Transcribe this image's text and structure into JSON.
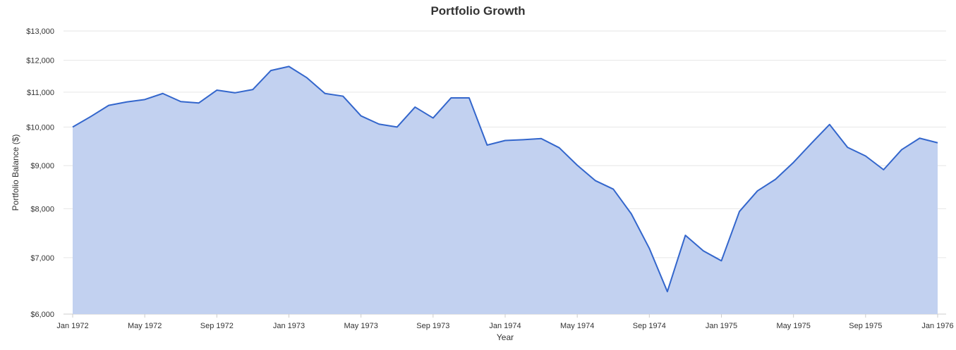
{
  "chart_data": {
    "type": "area",
    "title": "Portfolio Growth",
    "xlabel": "Year",
    "ylabel": "Portfolio Balance ($)",
    "y_scale": "log",
    "ylim": [
      6000,
      13000
    ],
    "y_ticks": [
      6000,
      7000,
      8000,
      9000,
      10000,
      11000,
      12000,
      13000
    ],
    "y_tick_labels": [
      "$6,000",
      "$7,000",
      "$8,000",
      "$9,000",
      "$10,000",
      "$11,000",
      "$12,000",
      "$13,000"
    ],
    "xlim": [
      "1972-01",
      "1976-01"
    ],
    "x_ticks": [
      "1972-01",
      "1972-05",
      "1972-09",
      "1973-01",
      "1973-05",
      "1973-09",
      "1974-01",
      "1974-05",
      "1974-09",
      "1975-01",
      "1975-05",
      "1975-09",
      "1976-01"
    ],
    "x_tick_labels": [
      "Jan 1972",
      "May 1972",
      "Sep 1972",
      "Jan 1973",
      "May 1973",
      "Sep 1973",
      "Jan 1974",
      "May 1974",
      "Sep 1974",
      "Jan 1975",
      "May 1975",
      "Sep 1975",
      "Jan 1976"
    ],
    "grid": true,
    "legend": "none",
    "series": [
      {
        "color": "#3366cc",
        "fill_color": "#c2d1f0",
        "x": [
          "1972-01",
          "1972-02",
          "1972-03",
          "1972-04",
          "1972-05",
          "1972-06",
          "1972-07",
          "1972-08",
          "1972-09",
          "1972-10",
          "1972-11",
          "1972-12",
          "1973-01",
          "1973-02",
          "1973-03",
          "1973-04",
          "1973-05",
          "1973-06",
          "1973-07",
          "1973-08",
          "1973-09",
          "1973-10",
          "1973-11",
          "1973-12",
          "1974-01",
          "1974-02",
          "1974-03",
          "1974-04",
          "1974-05",
          "1974-06",
          "1974-07",
          "1974-08",
          "1974-09",
          "1974-10",
          "1974-11",
          "1974-12",
          "1975-01",
          "1975-02",
          "1975-03",
          "1975-04",
          "1975-05",
          "1975-06",
          "1975-07",
          "1975-08",
          "1975-09",
          "1975-10",
          "1975-11",
          "1975-12",
          "1976-01"
        ],
        "values": [
          10000,
          10290,
          10610,
          10710,
          10780,
          10960,
          10720,
          10680,
          11060,
          10980,
          11080,
          11670,
          11800,
          11440,
          10960,
          10880,
          10310,
          10080,
          10000,
          10560,
          10250,
          10830,
          10830,
          9520,
          9640,
          9660,
          9690,
          9450,
          9010,
          8640,
          8440,
          7890,
          7180,
          6380,
          7440,
          7130,
          6940,
          7940,
          8400,
          8670,
          9080,
          9570,
          10070,
          9460,
          9240,
          8900,
          9400,
          9700,
          9580
        ]
      }
    ]
  }
}
